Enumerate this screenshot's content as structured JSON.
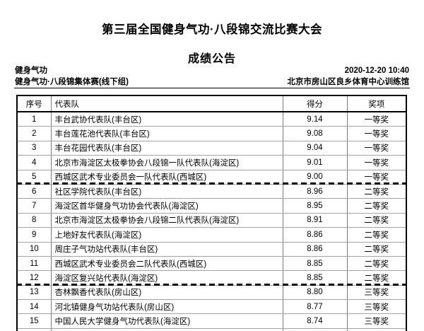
{
  "page": {
    "title": "第三届全国健身气功·八段锦交流比赛大会",
    "subtitle": "成绩公告"
  },
  "meta": {
    "event_name": "健身气功",
    "event_detail": "健身气功·八段锦集体赛(线下组)",
    "datetime": "2020-12-20 10:40",
    "venue": "北京市房山区良乡体育中心训练馆"
  },
  "table": {
    "columns": [
      "序号",
      "代表队",
      "得分",
      "奖项"
    ],
    "rows": [
      {
        "rank": "1",
        "team": "丰台武协代表队(丰台区)",
        "score": "9.14",
        "award": "一等奖"
      },
      {
        "rank": "2",
        "team": "丰台莲花池代表队(丰台区)",
        "score": "9.08",
        "award": "一等奖"
      },
      {
        "rank": "3",
        "team": "丰台花园代表队(丰台区)",
        "score": "9.04",
        "award": "一等奖"
      },
      {
        "rank": "4",
        "team": "北京市海淀区太极拳协会八段锦一队代表队(海淀区)",
        "score": "9.01",
        "award": "一等奖"
      },
      {
        "rank": "5",
        "team": "西城区武术专业委员会一队代表队(西城区)",
        "score": "9.00",
        "award": "一等奖"
      },
      {
        "rank": "6",
        "team": "社区学院代表队(丰台区)",
        "score": "8.96",
        "award": "二等奖"
      },
      {
        "rank": "7",
        "team": "海淀区首华健身气功协会代表队(海淀区)",
        "score": "8.95",
        "award": "二等奖"
      },
      {
        "rank": "8",
        "team": "北京市海淀区太极拳协会八段锦二队代表队(海淀区)",
        "score": "8.91",
        "award": "二等奖"
      },
      {
        "rank": "9",
        "team": "上地好友代表队(海淀区)",
        "score": "8.86",
        "award": "二等奖"
      },
      {
        "rank": "10",
        "team": "周庄子气功站代表队(丰台区)",
        "score": "8.86",
        "award": "二等奖"
      },
      {
        "rank": "11",
        "team": "西城区武术专业委员会二队代表队(西城区)",
        "score": "8.85",
        "award": "二等奖"
      },
      {
        "rank": "12",
        "team": "海淀区复兴站代表队(海淀区)",
        "score": "8.85",
        "award": "二等奖"
      },
      {
        "rank": "13",
        "team": "杏林飘香代表队(房山区)",
        "score": "8.80",
        "award": "三等奖"
      },
      {
        "rank": "14",
        "team": "河北镇健身气功站代表队(房山区)",
        "score": "8.77",
        "award": "三等奖"
      },
      {
        "rank": "15",
        "team": "中国人民大学健身气功代表队(海淀区)",
        "score": "8.74",
        "award": "三等奖"
      }
    ],
    "tier_breaks_after_rows": [
      5,
      12
    ]
  }
}
